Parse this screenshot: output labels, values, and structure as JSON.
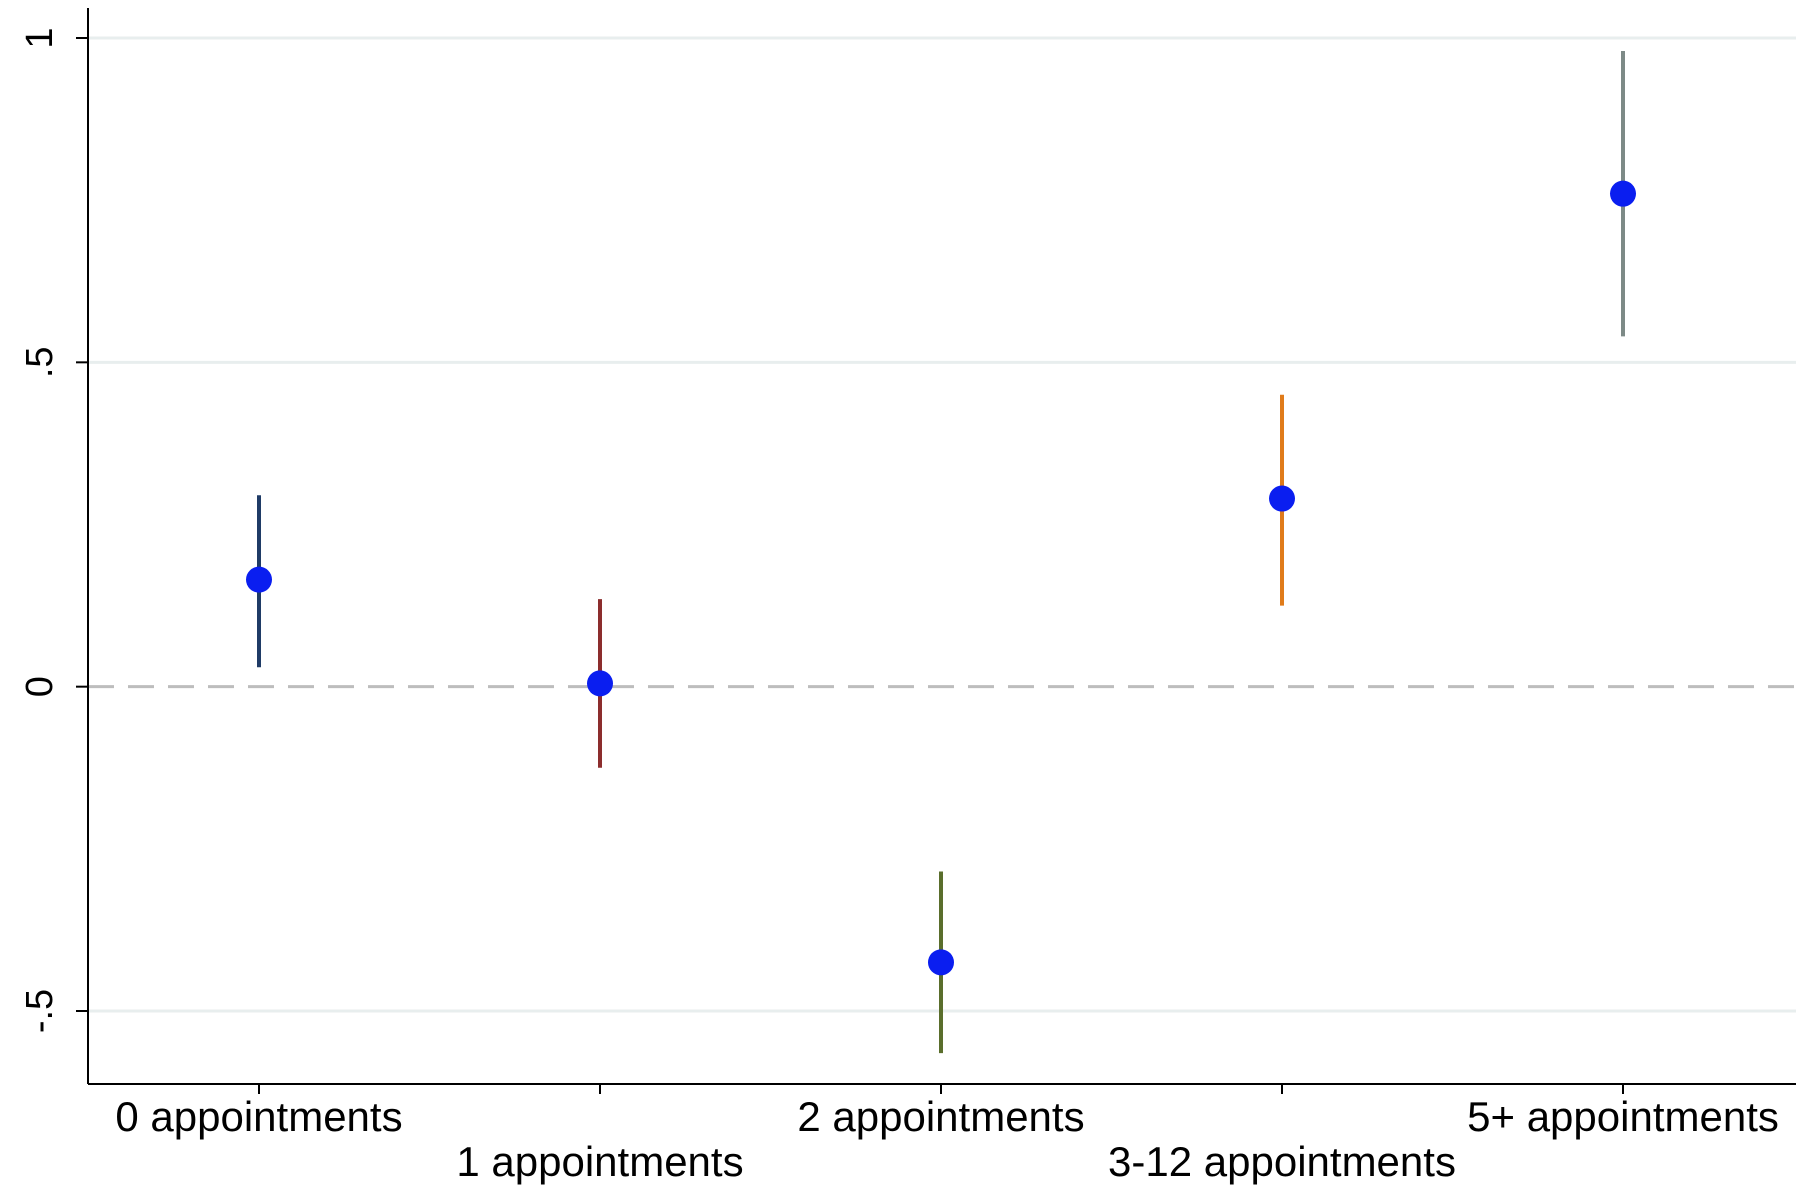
{
  "chart_data": {
    "type": "scatter",
    "title": "",
    "xlabel": "",
    "ylabel": "",
    "ylim": [
      -0.6,
      1.05
    ],
    "y_ticks": [
      {
        "value": -0.5,
        "label": "-.5"
      },
      {
        "value": 0,
        "label": "0"
      },
      {
        "value": 0.5,
        "label": ".5"
      },
      {
        "value": 1,
        "label": "1"
      }
    ],
    "grid": true,
    "reference_line": {
      "y": 0,
      "style": "dashed"
    },
    "categories": [
      "0 appointments",
      "1 appointments",
      "2 appointments",
      "3-12 appointments",
      "5+ appointments"
    ],
    "points": [
      {
        "category": "0 appointments",
        "estimate": 0.165,
        "ci_low": 0.03,
        "ci_high": 0.295,
        "ci_color": "#1f3b66"
      },
      {
        "category": "1 appointments",
        "estimate": 0.005,
        "ci_low": -0.125,
        "ci_high": 0.135,
        "ci_color": "#8c2d2d"
      },
      {
        "category": "2 appointments",
        "estimate": -0.425,
        "ci_low": -0.565,
        "ci_high": -0.285,
        "ci_color": "#5a6e2c"
      },
      {
        "category": "3-12 appointments",
        "estimate": 0.29,
        "ci_low": 0.125,
        "ci_high": 0.45,
        "ci_color": "#e07b1a"
      },
      {
        "category": "5+ appointments",
        "estimate": 0.76,
        "ci_low": 0.54,
        "ci_high": 0.98,
        "ci_color": "#7d8a87"
      }
    ],
    "marker_color": "#0a1ef0",
    "legend": "none"
  }
}
